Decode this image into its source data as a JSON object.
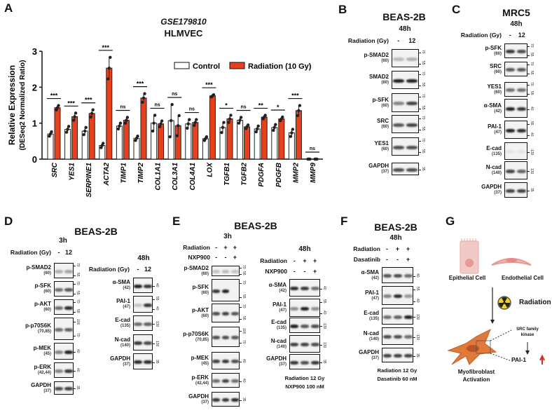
{
  "panel_a": {
    "letter": "A",
    "title_italic": "GSE179810",
    "title": "HLMVEC",
    "legend": [
      {
        "label": "Control",
        "color": "#ffffff"
      },
      {
        "label": "Radiation (10 Gy)",
        "color": "#e8401c"
      }
    ]
  },
  "chart_data": {
    "type": "bar",
    "title": "GSE179810 HLMVEC",
    "ylabel": "Relative Expression",
    "ylabel_sub": "(DESeq2 Normalized Ratio)",
    "ylim": [
      0,
      3
    ],
    "yticks": [
      "0",
      "1",
      "2",
      "3"
    ],
    "categories": [
      "SRC",
      "YES1",
      "SERPINE1",
      "ACTA2",
      "TIMP1",
      "TIMP2",
      "COL1A1",
      "COL3A1",
      "COL4A1",
      "LOX",
      "TGFB1",
      "TGFB2",
      "PDGFA",
      "PDGFB",
      "MMP2",
      "MMP9"
    ],
    "series": [
      {
        "name": "Control",
        "values": [
          0.7,
          0.83,
          0.78,
          0.38,
          0.92,
          0.58,
          1.0,
          1.07,
          0.98,
          0.57,
          0.88,
          1.08,
          0.84,
          0.88,
          0.73,
          0.0
        ],
        "error": [
          0.06,
          0.08,
          0.1,
          0.06,
          0.08,
          0.06,
          0.22,
          0.45,
          0.12,
          0.05,
          0.14,
          0.08,
          0.08,
          0.08,
          0.1,
          0.0
        ]
      },
      {
        "name": "Radiation (10 Gy)",
        "values": [
          1.43,
          1.18,
          1.27,
          2.53,
          1.08,
          1.7,
          0.98,
          0.93,
          1.02,
          1.76,
          1.12,
          0.9,
          1.17,
          1.12,
          1.35,
          0.0
        ],
        "error": [
          0.06,
          0.1,
          0.1,
          0.3,
          0.08,
          0.12,
          0.08,
          0.28,
          0.08,
          0.03,
          0.1,
          0.05,
          0.05,
          0.05,
          0.14,
          0.0
        ]
      }
    ],
    "significance": [
      "***",
      "***",
      "***",
      "***",
      "ns",
      "***",
      "ns",
      "ns",
      "ns",
      "***",
      "*",
      "ns",
      "**",
      "*",
      "***",
      "ns"
    ],
    "legend_position": "top-right"
  },
  "blots": [
    {
      "letter": "B",
      "cell_line": "BEAS-2B",
      "time": "48h",
      "conditions": [
        {
          "label": "Radiation (Gy)",
          "lanes": [
            "-",
            "12"
          ]
        }
      ],
      "rows": [
        {
          "name": "p-SMAD2",
          "mw": "(60)",
          "markers": [
            "70",
            "55"
          ],
          "bands": [
            0.25,
            0.3
          ]
        },
        {
          "name": "SMAD2",
          "mw": "(60)",
          "markers": [
            "70",
            "55"
          ],
          "bands": [
            0.95,
            0.95
          ]
        },
        {
          "name": "p-SFK",
          "mw": "(60)",
          "markers": [
            "70",
            "55"
          ],
          "bands": [
            0.5,
            0.8
          ]
        },
        {
          "name": "SRC",
          "mw": "(60)",
          "markers": [
            "70",
            "55"
          ],
          "bands": [
            0.7,
            0.8
          ]
        },
        {
          "name": "YES1",
          "mw": "(60)",
          "markers": [
            "70",
            "55"
          ],
          "bands": [
            0.75,
            0.75
          ]
        },
        {
          "name": "GAPDH",
          "mw": "(37)",
          "markers": [
            "35"
          ],
          "bands": [
            0.75,
            0.75
          ]
        }
      ]
    },
    {
      "letter": "C",
      "cell_line": "MRC5",
      "time": "48h",
      "conditions": [
        {
          "label": "Radiation (Gy)",
          "lanes": [
            "-",
            "12"
          ]
        }
      ],
      "rows": [
        {
          "name": "p-SFK",
          "mw": "(60)",
          "markers": [
            "70",
            "55"
          ],
          "bands": [
            0.85,
            0.75
          ]
        },
        {
          "name": "SRC",
          "mw": "(60)",
          "markers": [
            "70",
            "55"
          ],
          "bands": [
            0.7,
            0.7
          ]
        },
        {
          "name": "YES1",
          "mw": "(60)",
          "markers": [
            "70",
            "55"
          ],
          "bands": [
            0.6,
            0.6
          ]
        },
        {
          "name": "α-SMA",
          "mw": "(42)",
          "markers": [
            "40"
          ],
          "bands": [
            0.95,
            0.85
          ]
        },
        {
          "name": "PAI-1",
          "mw": "(47)",
          "markers": [
            "55",
            "40"
          ],
          "bands": [
            0.95,
            0.9
          ]
        },
        {
          "name": "E-cad",
          "mw": "(135)",
          "markers": [
            "130"
          ],
          "bands": [
            0.05,
            0.05
          ]
        },
        {
          "name": "N-cad",
          "mw": "(140)",
          "markers": [
            "130"
          ],
          "bands": [
            0.8,
            0.65
          ]
        },
        {
          "name": "GAPDH",
          "mw": "(37)",
          "markers": [
            "35"
          ],
          "bands": [
            0.8,
            0.8
          ]
        }
      ]
    },
    {
      "letter": "D",
      "cell_line": "BEAS-2B",
      "time": "3h",
      "conditions": [
        {
          "label": "Radiation (Gy)",
          "lanes": [
            "-",
            "12"
          ]
        }
      ],
      "rows": [
        {
          "name": "p-SMAD2",
          "mw": "(60)",
          "markers": [
            "70",
            "55"
          ],
          "bands": [
            0.3,
            0.35
          ]
        },
        {
          "name": "p-SFK",
          "mw": "(60)",
          "markers": [
            "70",
            "55"
          ],
          "bands": [
            0.6,
            0.7
          ]
        },
        {
          "name": "p-AKT",
          "mw": "(60)",
          "markers": [
            "70",
            "55"
          ],
          "bands": [
            0.6,
            0.9
          ]
        },
        {
          "name": "p-p70S6K",
          "mw": "(70,85)",
          "markers": [
            "100",
            "70"
          ],
          "bands": [
            0.6,
            0.65
          ]
        },
        {
          "name": "p-MEK",
          "mw": "(45)",
          "markers": [
            "40"
          ],
          "bands": [
            0.5,
            0.95
          ]
        },
        {
          "name": "p-ERK",
          "mw": "(42,44)",
          "markers": [
            "40"
          ],
          "bands": [
            0.5,
            0.85
          ]
        },
        {
          "name": "GAPDH",
          "mw": "(37)",
          "markers": [
            "35"
          ],
          "bands": [
            0.75,
            0.8
          ]
        }
      ]
    },
    {
      "letter": "",
      "cell_line": "",
      "time": "48h",
      "conditions": [
        {
          "label": "Radiation (Gy)",
          "lanes": [
            "-",
            "12"
          ]
        }
      ],
      "rows": [
        {
          "name": "α-SMA",
          "mw": "(42)",
          "markers": [
            "40"
          ],
          "bands": [
            0.95,
            0.85
          ]
        },
        {
          "name": "PAI-1",
          "mw": "(47)",
          "markers": [
            "55",
            "40"
          ],
          "bands": [
            0.2,
            0.85
          ]
        },
        {
          "name": "E-cad",
          "mw": "(135)",
          "markers": [
            "130"
          ],
          "bands": [
            0.6,
            0.65
          ]
        },
        {
          "name": "N-cad",
          "mw": "(140)",
          "markers": [
            "130"
          ],
          "bands": [
            0.85,
            0.75
          ]
        },
        {
          "name": "GAPDH",
          "mw": "(37)",
          "markers": [
            "35"
          ],
          "bands": [
            0.9,
            0.9
          ]
        }
      ]
    },
    {
      "letter": "E",
      "cell_line": "BEAS-2B",
      "time": "3h",
      "conditions": [
        {
          "label": "Radiation",
          "lanes": [
            "-",
            "+",
            "+"
          ]
        },
        {
          "label": "NXP900",
          "lanes": [
            "-",
            "-",
            "+"
          ]
        }
      ],
      "rows": [
        {
          "name": "p-SMAD2",
          "mw": "(60)",
          "markers": [
            "70",
            "55"
          ],
          "bands": [
            0.2,
            0.25,
            0.2
          ]
        },
        {
          "name": "p-SFK",
          "mw": "(60)",
          "markers": [
            "70",
            "55"
          ],
          "bands": [
            0.85,
            0.95,
            0.0
          ]
        },
        {
          "name": "p-AKT",
          "mw": "(60)",
          "markers": [
            "70",
            "55"
          ],
          "bands": [
            0.75,
            0.8,
            0.7
          ]
        },
        {
          "name": "p-p70S6K",
          "mw": "(70,85)",
          "markers": [
            "100",
            "70"
          ],
          "bands": [
            0.75,
            0.75,
            0.7
          ]
        },
        {
          "name": "p-MEK",
          "mw": "(45)",
          "markers": [
            "40"
          ],
          "bands": [
            0.8,
            0.85,
            0.75
          ]
        },
        {
          "name": "p-ERK",
          "mw": "(42,44)",
          "markers": [
            "40"
          ],
          "bands": [
            0.6,
            0.8,
            0.6
          ]
        },
        {
          "name": "GAPDH",
          "mw": "(37)",
          "markers": [
            "35"
          ],
          "bands": [
            0.85,
            0.85,
            0.9
          ]
        }
      ]
    },
    {
      "letter": "",
      "cell_line": "",
      "time": "48h",
      "conditions": [
        {
          "label": "Radiation",
          "lanes": [
            "-",
            "+",
            "+"
          ]
        },
        {
          "label": "NXP900",
          "lanes": [
            "-",
            "-",
            "+"
          ]
        }
      ],
      "rows": [
        {
          "name": "α-SMA",
          "mw": "(42)",
          "markers": [
            "40"
          ],
          "bands": [
            0.9,
            0.85,
            0.6
          ]
        },
        {
          "name": "PAI-1",
          "mw": "(47)",
          "markers": [
            "55",
            "40"
          ],
          "bands": [
            0.45,
            0.95,
            0.45
          ]
        },
        {
          "name": "E-cad",
          "mw": "(135)",
          "markers": [
            "130"
          ],
          "bands": [
            0.95,
            0.7,
            0.75
          ]
        },
        {
          "name": "N-cad",
          "mw": "(140)",
          "markers": [
            "130"
          ],
          "bands": [
            0.8,
            0.8,
            0.75
          ]
        },
        {
          "name": "GAPDH",
          "mw": "(37)",
          "markers": [
            "35"
          ],
          "bands": [
            0.85,
            0.75,
            0.85
          ]
        }
      ],
      "footer": [
        "Radiation 12 Gy",
        "NXP900 100 nM"
      ]
    },
    {
      "letter": "F",
      "cell_line": "BEAS-2B",
      "time": "48h",
      "conditions": [
        {
          "label": "Radiation",
          "lanes": [
            "-",
            "+",
            "+"
          ]
        },
        {
          "label": "Dasatinib",
          "lanes": [
            "-",
            "-",
            "+"
          ]
        }
      ],
      "rows": [
        {
          "name": "α-SMA",
          "mw": "(42)",
          "markers": [
            "40"
          ],
          "bands": [
            0.7,
            0.75,
            0.6
          ]
        },
        {
          "name": "PAI-1",
          "mw": "(47)",
          "markers": [
            "55",
            "40"
          ],
          "bands": [
            0.5,
            0.9,
            0.4
          ]
        },
        {
          "name": "E-cad",
          "mw": "(135)",
          "markers": [
            "130"
          ],
          "bands": [
            0.6,
            0.65,
            0.95
          ]
        },
        {
          "name": "N-cad",
          "mw": "(140)",
          "markers": [
            "130"
          ],
          "bands": [
            0.75,
            0.75,
            0.6
          ]
        },
        {
          "name": "GAPDH",
          "mw": "(37)",
          "markers": [
            "35"
          ],
          "bands": [
            0.8,
            0.8,
            0.8
          ]
        }
      ],
      "footer": [
        "Radiation 12 Gy",
        "Dasatinib 60 nM"
      ]
    }
  ],
  "panel_g": {
    "letter": "G",
    "epithelial": "Epithelial Cell",
    "endothelial": "Endothelial Cell",
    "radiation": "Radiation",
    "src": [
      "SRC family",
      "kinase"
    ],
    "pai": "PAI-1",
    "outcome": [
      "Myofibroblast",
      "Activation"
    ],
    "colors": {
      "cell": "#f3c9c6",
      "fibroblast": "#e07a3a",
      "arrow_up": "#d92b2b",
      "radiation": "#f2d21b"
    }
  }
}
